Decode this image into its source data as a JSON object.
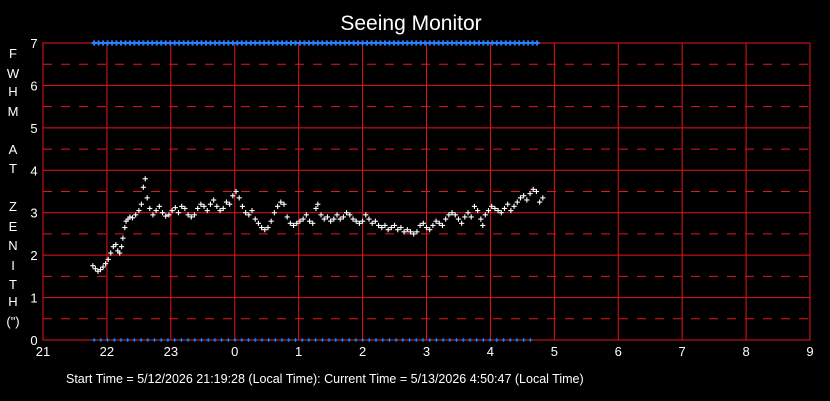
{
  "chart_data": {
    "type": "scatter",
    "title": "Seeing Monitor",
    "ylabel": "FWHM AT ZENITH (\")",
    "ylabel_lines": [
      "F",
      "W",
      "H",
      "M",
      "",
      "A",
      "T",
      "",
      "Z",
      "E",
      "N",
      "I",
      "T",
      "H",
      "(\")"
    ],
    "xlabel": "",
    "x_ticks": [
      "21",
      "22",
      "23",
      "0",
      "1",
      "2",
      "3",
      "4",
      "5",
      "6",
      "7",
      "8",
      "9"
    ],
    "y_ticks": [
      "0",
      "1",
      "2",
      "3",
      "4",
      "5",
      "6",
      "7"
    ],
    "xlim": [
      21,
      33
    ],
    "ylim": [
      0,
      7
    ],
    "grid": true,
    "grid_minor_y_dashed": [
      0.5,
      1.5,
      2.5,
      3.5,
      4.5,
      5.5,
      6.5
    ],
    "x_unit": "hour (local time)",
    "x_start": 21.77,
    "x_end": 28.85,
    "series": [
      {
        "marker": "plus",
        "color": "#ffffff",
        "points": [
          [
            21.78,
            1.75
          ],
          [
            21.82,
            1.68
          ],
          [
            21.86,
            1.62
          ],
          [
            21.9,
            1.66
          ],
          [
            21.94,
            1.72
          ],
          [
            21.98,
            1.8
          ],
          [
            22.02,
            1.9
          ],
          [
            22.06,
            2.05
          ],
          [
            22.1,
            2.2
          ],
          [
            22.14,
            2.25
          ],
          [
            22.17,
            2.1
          ],
          [
            22.2,
            2.05
          ],
          [
            22.23,
            2.2
          ],
          [
            22.25,
            2.4
          ],
          [
            22.28,
            2.65
          ],
          [
            22.3,
            2.8
          ],
          [
            22.33,
            2.85
          ],
          [
            22.36,
            2.9
          ],
          [
            22.4,
            2.88
          ],
          [
            22.45,
            2.95
          ],
          [
            22.5,
            3.05
          ],
          [
            22.54,
            3.2
          ],
          [
            22.57,
            3.6
          ],
          [
            22.6,
            3.8
          ],
          [
            22.63,
            3.35
          ],
          [
            22.67,
            3.1
          ],
          [
            22.72,
            2.95
          ],
          [
            22.77,
            3.05
          ],
          [
            22.82,
            3.15
          ],
          [
            22.87,
            3.0
          ],
          [
            22.92,
            2.92
          ],
          [
            22.97,
            2.95
          ],
          [
            23.02,
            3.05
          ],
          [
            23.07,
            3.12
          ],
          [
            23.12,
            3.0
          ],
          [
            23.17,
            3.15
          ],
          [
            23.22,
            3.1
          ],
          [
            23.27,
            2.95
          ],
          [
            23.32,
            2.9
          ],
          [
            23.37,
            2.95
          ],
          [
            23.42,
            3.1
          ],
          [
            23.47,
            3.2
          ],
          [
            23.52,
            3.15
          ],
          [
            23.57,
            3.05
          ],
          [
            23.62,
            3.2
          ],
          [
            23.67,
            3.3
          ],
          [
            23.72,
            3.15
          ],
          [
            23.77,
            3.05
          ],
          [
            23.82,
            3.1
          ],
          [
            23.87,
            3.25
          ],
          [
            23.92,
            3.2
          ],
          [
            23.97,
            3.4
          ],
          [
            24.02,
            3.5
          ],
          [
            24.07,
            3.35
          ],
          [
            24.12,
            3.15
          ],
          [
            24.17,
            3.0
          ],
          [
            24.22,
            2.95
          ],
          [
            24.27,
            3.05
          ],
          [
            24.32,
            2.85
          ],
          [
            24.37,
            2.75
          ],
          [
            24.42,
            2.65
          ],
          [
            24.47,
            2.6
          ],
          [
            24.52,
            2.65
          ],
          [
            24.57,
            2.8
          ],
          [
            24.62,
            3.0
          ],
          [
            24.67,
            3.15
          ],
          [
            24.72,
            3.25
          ],
          [
            24.77,
            3.2
          ],
          [
            24.82,
            2.9
          ],
          [
            24.87,
            2.75
          ],
          [
            24.92,
            2.7
          ],
          [
            24.97,
            2.75
          ],
          [
            25.02,
            2.8
          ],
          [
            25.07,
            2.85
          ],
          [
            25.12,
            2.95
          ],
          [
            25.17,
            2.8
          ],
          [
            25.22,
            2.75
          ],
          [
            25.27,
            3.1
          ],
          [
            25.3,
            3.2
          ],
          [
            25.35,
            2.95
          ],
          [
            25.4,
            2.85
          ],
          [
            25.45,
            2.9
          ],
          [
            25.5,
            2.8
          ],
          [
            25.55,
            2.85
          ],
          [
            25.6,
            2.95
          ],
          [
            25.65,
            2.85
          ],
          [
            25.7,
            2.9
          ],
          [
            25.75,
            3.0
          ],
          [
            25.8,
            2.95
          ],
          [
            25.85,
            2.85
          ],
          [
            25.9,
            2.8
          ],
          [
            25.95,
            2.75
          ],
          [
            26.0,
            2.8
          ],
          [
            26.05,
            2.95
          ],
          [
            26.1,
            2.85
          ],
          [
            26.15,
            2.75
          ],
          [
            26.2,
            2.8
          ],
          [
            26.25,
            2.7
          ],
          [
            26.3,
            2.65
          ],
          [
            26.35,
            2.7
          ],
          [
            26.4,
            2.6
          ],
          [
            26.45,
            2.65
          ],
          [
            26.5,
            2.7
          ],
          [
            26.55,
            2.6
          ],
          [
            26.6,
            2.65
          ],
          [
            26.65,
            2.55
          ],
          [
            26.7,
            2.6
          ],
          [
            26.75,
            2.55
          ],
          [
            26.8,
            2.5
          ],
          [
            26.85,
            2.55
          ],
          [
            26.9,
            2.7
          ],
          [
            26.95,
            2.75
          ],
          [
            27.0,
            2.65
          ],
          [
            27.05,
            2.6
          ],
          [
            27.1,
            2.7
          ],
          [
            27.15,
            2.8
          ],
          [
            27.2,
            2.75
          ],
          [
            27.25,
            2.7
          ],
          [
            27.3,
            2.85
          ],
          [
            27.35,
            2.95
          ],
          [
            27.4,
            3.0
          ],
          [
            27.45,
            2.95
          ],
          [
            27.5,
            2.85
          ],
          [
            27.55,
            2.75
          ],
          [
            27.6,
            2.9
          ],
          [
            27.65,
            3.0
          ],
          [
            27.7,
            2.9
          ],
          [
            27.75,
            3.15
          ],
          [
            27.8,
            3.05
          ],
          [
            27.85,
            2.85
          ],
          [
            27.88,
            2.7
          ],
          [
            27.92,
            2.95
          ],
          [
            27.97,
            3.05
          ],
          [
            28.02,
            3.15
          ],
          [
            28.07,
            3.1
          ],
          [
            28.12,
            3.05
          ],
          [
            28.17,
            3.0
          ],
          [
            28.22,
            3.1
          ],
          [
            28.27,
            3.2
          ],
          [
            28.32,
            3.05
          ],
          [
            28.37,
            3.15
          ],
          [
            28.42,
            3.25
          ],
          [
            28.47,
            3.35
          ],
          [
            28.52,
            3.4
          ],
          [
            28.57,
            3.3
          ],
          [
            28.62,
            3.45
          ],
          [
            28.67,
            3.55
          ],
          [
            28.72,
            3.5
          ],
          [
            28.77,
            3.25
          ],
          [
            28.82,
            3.35
          ]
        ]
      },
      {
        "marker": "plus",
        "color": "#2a7fff",
        "points_note": "",
        "y_top": 7,
        "y_bottom": 0
      }
    ]
  },
  "footer": {
    "start_label": "Start Time = 5/12/2026  21:19:28 (Local Time):  Current Time = 5/13/2026  4:50:47 (Local Time)"
  },
  "colors": {
    "background": "#000000",
    "grid": "#e8141e",
    "data": "#ffffff",
    "flags": "#2a7fff"
  }
}
